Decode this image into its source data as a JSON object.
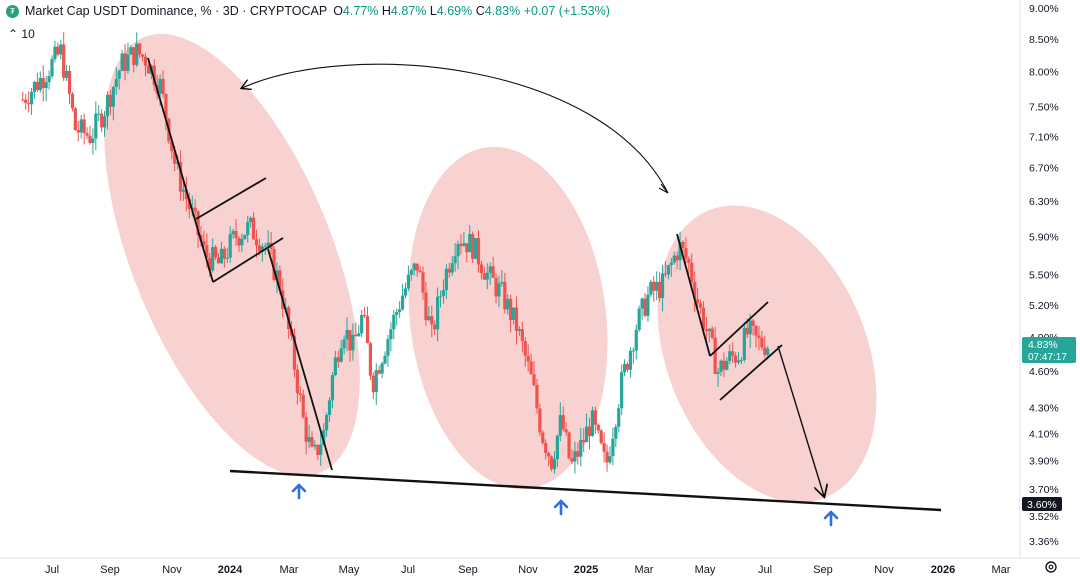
{
  "header": {
    "title": "Market Cap USDT Dominance, %",
    "interval": "3D",
    "source": "CRYPTOCAP",
    "open_label": "O",
    "open": "4.77%",
    "high_label": "H",
    "high": "4.87%",
    "low_label": "L",
    "low": "4.69%",
    "close_label": "C",
    "close": "4.83%",
    "change": "+0.07 (+1.53%)"
  },
  "indicator_label": "10",
  "icons": {
    "logo": "tether-logo-icon",
    "indicator": "chevron-icon",
    "settings": "gear-icon"
  },
  "colors": {
    "up": "#26a69a",
    "down": "#ef5350",
    "highlight": "#f5b8b8",
    "price_tag": "#26a69a",
    "arrow": "#2962ff"
  },
  "price_tag": {
    "value": "4.83%",
    "countdown": "07:47:17"
  },
  "support_tag": "3.60%",
  "chart_data": {
    "type": "candlestick",
    "scale": "log",
    "y_ticks": [
      "9.00%",
      "8.50%",
      "8.00%",
      "7.50%",
      "7.10%",
      "6.70%",
      "6.30%",
      "5.90%",
      "5.50%",
      "5.20%",
      "4.90%",
      "4.60%",
      "4.30%",
      "4.10%",
      "3.90%",
      "3.70%",
      "3.52%",
      "3.36%"
    ],
    "x_ticks": [
      "Jul",
      "Sep",
      "Nov",
      "2024",
      "Mar",
      "May",
      "Jul",
      "Sep",
      "Nov",
      "2025",
      "Mar",
      "May",
      "Jul",
      "Sep",
      "Nov",
      "2026",
      "Mar"
    ],
    "x_range": [
      "2023-06-01",
      "2026-04-01"
    ],
    "y_range": [
      3.25,
      9.1
    ],
    "series": {
      "dates": [
        "2023-06-01",
        "2023-06-20",
        "2023-07-10",
        "2023-07-25",
        "2023-08-10",
        "2023-08-25",
        "2023-09-10",
        "2023-09-25",
        "2023-10-05",
        "2023-10-20",
        "2023-11-05",
        "2023-11-20",
        "2023-12-05",
        "2023-12-20",
        "2024-01-05",
        "2024-01-20",
        "2024-02-05",
        "2024-02-20",
        "2024-03-05",
        "2024-03-15",
        "2024-03-25",
        "2024-04-05",
        "2024-04-15",
        "2024-04-25",
        "2024-05-05",
        "2024-05-15",
        "2024-05-25",
        "2024-06-10",
        "2024-06-25",
        "2024-07-10",
        "2024-07-25",
        "2024-08-05",
        "2024-08-20",
        "2024-09-05",
        "2024-09-20",
        "2024-10-05",
        "2024-10-20",
        "2024-11-05",
        "2024-11-15",
        "2024-11-25",
        "2024-12-05",
        "2024-12-15",
        "2024-12-25",
        "2025-01-05",
        "2025-01-20",
        "2025-02-05",
        "2025-02-20",
        "2025-03-05",
        "2025-03-20",
        "2025-04-05",
        "2025-04-15",
        "2025-04-25",
        "2025-05-05",
        "2025-05-15",
        "2025-05-25",
        "2025-06-05",
        "2025-06-15",
        "2025-06-25",
        "2025-07-05"
      ],
      "close": [
        7.6,
        7.9,
        8.3,
        7.2,
        7.1,
        7.5,
        8.1,
        8.3,
        8.2,
        7.8,
        6.7,
        6.2,
        5.7,
        5.6,
        5.9,
        6.0,
        5.8,
        5.4,
        4.7,
        4.2,
        3.9,
        4.1,
        4.6,
        5.0,
        4.8,
        5.1,
        4.5,
        4.9,
        5.3,
        5.6,
        4.9,
        5.4,
        5.9,
        5.8,
        5.5,
        5.3,
        5.0,
        4.5,
        4.1,
        3.9,
        4.2,
        3.85,
        4.0,
        4.2,
        3.85,
        4.5,
        5.0,
        5.3,
        5.4,
        5.8,
        5.6,
        5.2,
        4.9,
        4.6,
        4.7,
        4.75,
        4.95,
        4.85,
        4.83
      ]
    },
    "annotations": {
      "support_line": {
        "from": [
          "2023-09-28",
          3.8
        ],
        "to": [
          "2026-01-01",
          3.56
        ]
      },
      "ellipse_1": {
        "center": [
          "2024-01-01",
          5.6
        ]
      },
      "ellipse_2": {
        "center": [
          "2024-11-01",
          4.8
        ]
      },
      "ellipse_3": {
        "center": [
          "2025-07-10",
          4.5
        ]
      },
      "flag_1": "bear flag",
      "flag_2": "bear flag",
      "projection_target": 3.6
    }
  }
}
